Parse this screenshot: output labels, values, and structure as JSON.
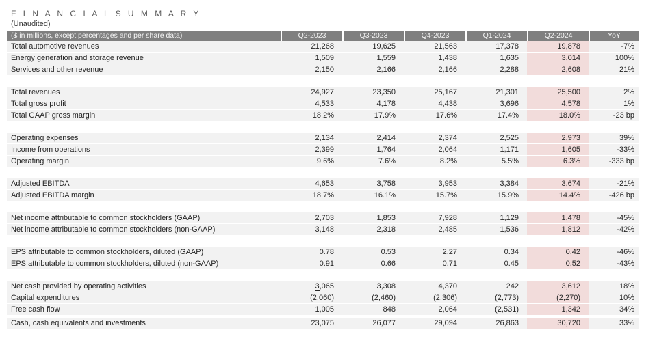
{
  "page": {
    "title": "F I N A N C I A L   S U M M A R Y",
    "subtitle": "(Unaudited)"
  },
  "table": {
    "row_header_label": "($ in millions, except percentages and per share data)",
    "columns": [
      "Q2-2023",
      "Q3-2023",
      "Q4-2023",
      "Q1-2024",
      "Q2-2024",
      "YoY"
    ],
    "highlight_column": "Q2-2024",
    "highlight_column_index": 4,
    "colors": {
      "header_bg": "#7f7f7f",
      "header_text": "#f5f5f5",
      "row_bg": "#f2f2f2",
      "highlight_bg": "#f2dcdb",
      "text": "#262626"
    },
    "groups": [
      {
        "rows": [
          {
            "label": "Total automotive revenues",
            "values": [
              "21,268",
              "19,625",
              "21,563",
              "17,378",
              "19,878",
              "-7%"
            ]
          },
          {
            "label": "Energy generation and storage revenue",
            "values": [
              "1,509",
              "1,559",
              "1,438",
              "1,635",
              "3,014",
              "100%"
            ]
          },
          {
            "label": "Services and other revenue",
            "values": [
              "2,150",
              "2,166",
              "2,166",
              "2,288",
              "2,608",
              "21%"
            ]
          }
        ]
      },
      {
        "rows": [
          {
            "label": "Total revenues",
            "values": [
              "24,927",
              "23,350",
              "25,167",
              "21,301",
              "25,500",
              "2%"
            ]
          },
          {
            "label": "Total gross profit",
            "values": [
              "4,533",
              "4,178",
              "4,438",
              "3,696",
              "4,578",
              "1%"
            ]
          },
          {
            "label": "Total GAAP gross margin",
            "values": [
              "18.2%",
              "17.9%",
              "17.6%",
              "17.4%",
              "18.0%",
              "-23 bp"
            ]
          }
        ]
      },
      {
        "rows": [
          {
            "label": "Operating expenses",
            "values": [
              "2,134",
              "2,414",
              "2,374",
              "2,525",
              "2,973",
              "39%"
            ]
          },
          {
            "label": "Income from operations",
            "values": [
              "2,399",
              "1,764",
              "2,064",
              "1,171",
              "1,605",
              "-33%"
            ]
          },
          {
            "label": "Operating margin",
            "values": [
              "9.6%",
              "7.6%",
              "8.2%",
              "5.5%",
              "6.3%",
              "-333 bp"
            ]
          }
        ]
      },
      {
        "rows": [
          {
            "label": "Adjusted EBITDA",
            "values": [
              "4,653",
              "3,758",
              "3,953",
              "3,384",
              "3,674",
              "-21%"
            ]
          },
          {
            "label": "Adjusted EBITDA margin",
            "values": [
              "18.7%",
              "16.1%",
              "15.7%",
              "15.9%",
              "14.4%",
              "-426 bp"
            ]
          }
        ]
      },
      {
        "rows": [
          {
            "label": "Net income attributable to common stockholders (GAAP)",
            "values": [
              "2,703",
              "1,853",
              "7,928",
              "1,129",
              "1,478",
              "-45%"
            ]
          },
          {
            "label": "Net income attributable to common stockholders (non-GAAP)",
            "values": [
              "3,148",
              "2,318",
              "2,485",
              "1,536",
              "1,812",
              "-42%"
            ]
          }
        ]
      },
      {
        "rows": [
          {
            "label": "EPS attributable to common stockholders, diluted (GAAP)",
            "values": [
              "0.78",
              "0.53",
              "2.27",
              "0.34",
              "0.42",
              "-46%"
            ]
          },
          {
            "label": "EPS attributable to common stockholders, diluted (non-GAAP)",
            "values": [
              "0.91",
              "0.66",
              "0.71",
              "0.45",
              "0.52",
              "-43%"
            ]
          }
        ]
      },
      {
        "rows": [
          {
            "label": "Net cash provided by operating activities",
            "values": [
              "3,065",
              "3,308",
              "4,370",
              "242",
              "3,612",
              "18%"
            ],
            "underline_first_char_col": 0
          },
          {
            "label": "Capital expenditures",
            "values": [
              "(2,060)",
              "(2,460)",
              "(2,306)",
              "(2,773)",
              "(2,270)",
              "10%"
            ]
          },
          {
            "label": "Free cash flow",
            "values": [
              "1,005",
              "848",
              "2,064",
              "(2,531)",
              "1,342",
              "34%"
            ]
          },
          {
            "label": "Cash, cash equivalents and investments",
            "values": [
              "23,075",
              "26,077",
              "29,094",
              "26,863",
              "30,720",
              "33%"
            ],
            "extra_gap_before": true
          }
        ]
      }
    ]
  }
}
